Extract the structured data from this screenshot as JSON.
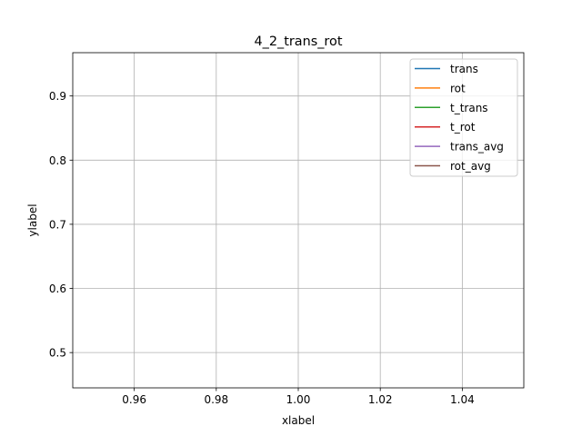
{
  "chart_data": {
    "type": "line",
    "title": "4_2_trans_rot",
    "xlabel": "xlabel",
    "ylabel": "ylabel",
    "xlim": [
      0.945,
      1.055
    ],
    "ylim": [
      0.445,
      0.9675
    ],
    "xticks": [
      0.96,
      0.98,
      1.0,
      1.02,
      1.04
    ],
    "xtick_labels": [
      "0.96",
      "0.98",
      "1.00",
      "1.02",
      "1.04"
    ],
    "yticks": [
      0.5,
      0.6,
      0.7,
      0.8,
      0.9
    ],
    "ytick_labels": [
      "0.5",
      "0.6",
      "0.7",
      "0.8",
      "0.9"
    ],
    "grid": true,
    "legend_position": "top-right",
    "series": [
      {
        "name": "trans",
        "color": "#1f77b4",
        "x": [],
        "y": []
      },
      {
        "name": "rot",
        "color": "#ff7f0e",
        "x": [],
        "y": []
      },
      {
        "name": "t_trans",
        "color": "#2ca02c",
        "x": [],
        "y": []
      },
      {
        "name": "t_rot",
        "color": "#d62728",
        "x": [],
        "y": []
      },
      {
        "name": "trans_avg",
        "color": "#9467bd",
        "x": [],
        "y": []
      },
      {
        "name": "rot_avg",
        "color": "#8c564b",
        "x": [],
        "y": []
      }
    ]
  }
}
